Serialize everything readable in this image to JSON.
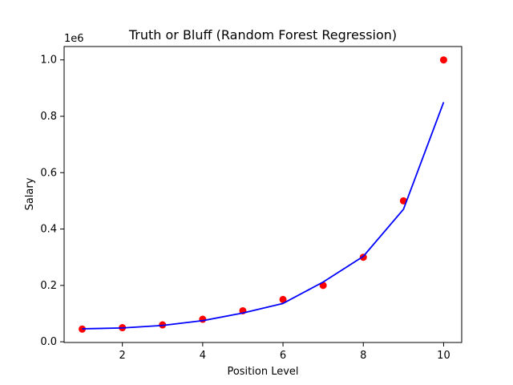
{
  "chart_data": {
    "type": "scatter",
    "title": "Truth or Bluff (Random Forest Regression)",
    "xlabel": "Position Level",
    "ylabel": "Salary",
    "y_offset_label": "1e6",
    "xlim": [
      0.55,
      10.45
    ],
    "ylim": [
      -0.0025,
      1.0475
    ],
    "x_ticks": [
      2,
      4,
      6,
      8,
      10
    ],
    "y_ticks": [
      0.0,
      0.2,
      0.4,
      0.6,
      0.8,
      1.0
    ],
    "grid": false,
    "series": [
      {
        "kind": "scatter",
        "color": "#ff0000",
        "x": [
          1,
          2,
          3,
          4,
          5,
          6,
          7,
          8,
          9,
          10
        ],
        "y": [
          0.045,
          0.05,
          0.06,
          0.08,
          0.11,
          0.15,
          0.2,
          0.3,
          0.5,
          1.0
        ]
      },
      {
        "kind": "line",
        "color": "#0000ff",
        "x": [
          1,
          2,
          3,
          4,
          5,
          6,
          7,
          8,
          9,
          10
        ],
        "y": [
          0.046,
          0.049,
          0.058,
          0.075,
          0.102,
          0.136,
          0.212,
          0.303,
          0.47,
          0.85
        ]
      }
    ]
  }
}
